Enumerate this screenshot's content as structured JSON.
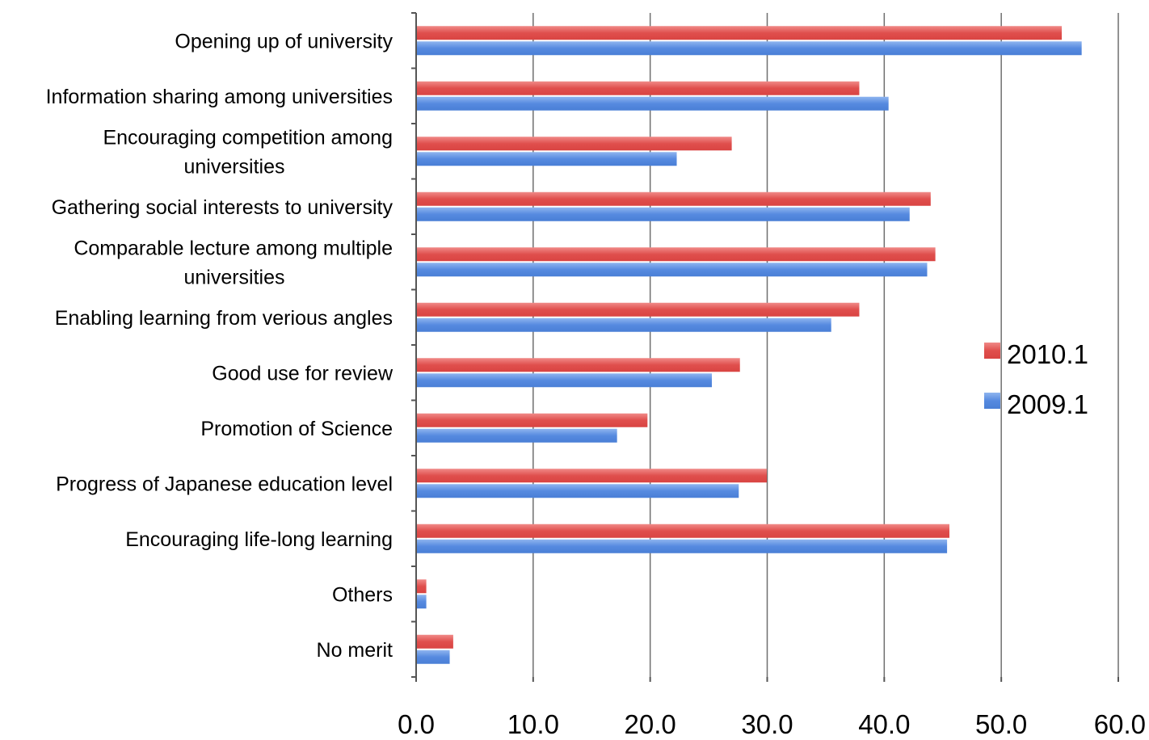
{
  "chart_data": {
    "type": "bar",
    "orientation": "horizontal",
    "categories": [
      [
        "Opening up of university"
      ],
      [
        "Information sharing among universities"
      ],
      [
        "Encouraging competition among",
        "universities"
      ],
      [
        "Gathering social interests to university"
      ],
      [
        "Comparable lecture among multiple",
        "universities"
      ],
      [
        "Enabling learning from verious angles"
      ],
      [
        "Good use for review"
      ],
      [
        "Promotion of Science"
      ],
      [
        "Progress of Japanese education level"
      ],
      [
        "Encouraging life-long learning"
      ],
      [
        "Others"
      ],
      [
        "No merit"
      ]
    ],
    "series": [
      {
        "name": "2010.1",
        "color": "#e35a58",
        "values": [
          55.1,
          37.8,
          26.9,
          43.9,
          44.3,
          37.8,
          27.6,
          19.7,
          29.9,
          45.5,
          0.8,
          3.1
        ]
      },
      {
        "name": "2009.1",
        "color": "#5b8ee0",
        "values": [
          56.8,
          40.3,
          22.2,
          42.1,
          43.6,
          35.4,
          25.2,
          17.1,
          27.5,
          45.3,
          0.8,
          2.8
        ]
      }
    ],
    "xlim": [
      0,
      60
    ],
    "xticks": [
      "0.0",
      "10.0",
      "20.0",
      "30.0",
      "40.0",
      "50.0",
      "60.0"
    ],
    "grid": "vertical",
    "legend": "right"
  }
}
